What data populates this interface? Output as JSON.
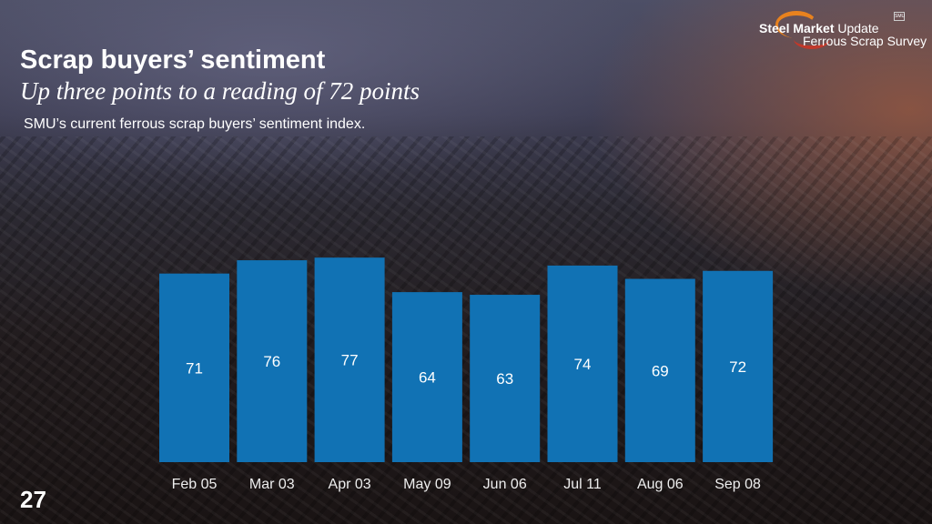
{
  "header": {
    "title": "Scrap buyers’ sentiment",
    "subtitle": "Up three points to a reading of 72 points",
    "description": "SMU’s current ferrous scrap buyers’ sentiment index."
  },
  "logo": {
    "line1_bold": "Steel Market",
    "line1_light": "Update",
    "line2": "Ferrous Scrap Survey",
    "badge": "SMU"
  },
  "page_number": "27",
  "chart_data": {
    "type": "bar",
    "categories": [
      "Feb 05",
      "Mar 03",
      "Apr 03",
      "May 09",
      "Jun 06",
      "Jul 11",
      "Aug 06",
      "Sep 08"
    ],
    "values": [
      71,
      76,
      77,
      64,
      63,
      74,
      69,
      72
    ],
    "title": "",
    "xlabel": "",
    "ylabel": "",
    "ylim": [
      0,
      100
    ],
    "grid": false,
    "bar_color": "#1172b4"
  }
}
